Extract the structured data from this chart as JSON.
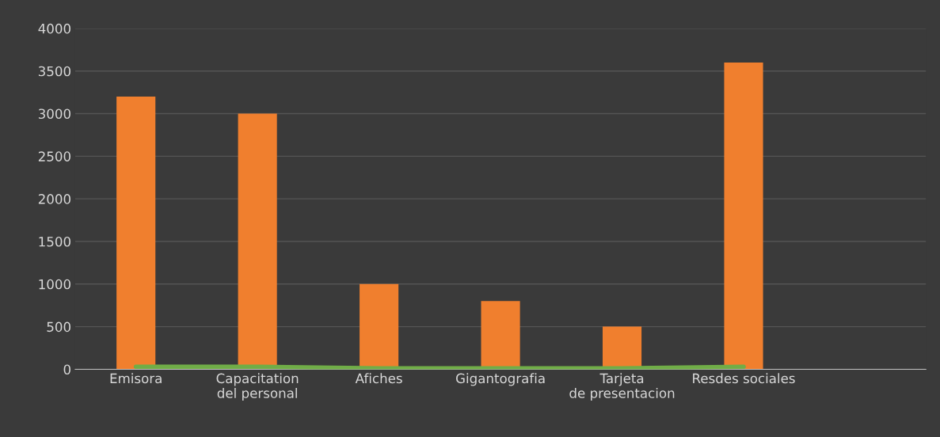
{
  "chart_data": {
    "type": "bar",
    "categories": [
      "Emisora",
      "Capacitation del personal",
      "Afiches",
      "Gigantografia",
      "Tarjeta de presentacion",
      "Resdes sociales",
      null
    ],
    "series": [
      {
        "color": "#f07f2e",
        "values": [
          3200,
          3000,
          1000,
          800,
          500,
          3600,
          null
        ]
      },
      {
        "type": "line",
        "color": "#70ad47",
        "values": [
          30,
          30,
          10,
          10,
          10,
          30,
          null
        ]
      }
    ],
    "ylim": [
      0,
      4000
    ],
    "yticks": [
      0,
      500,
      1000,
      1500,
      2000,
      2500,
      3000,
      3500,
      4000
    ],
    "grid": "y",
    "legend": false
  }
}
